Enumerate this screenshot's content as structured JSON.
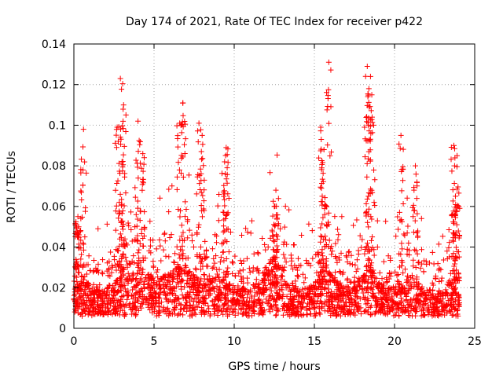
{
  "chart_data": {
    "type": "scatter",
    "title": "Day 174 of 2021, Rate Of TEC Index for receiver p422",
    "xlabel": "GPS time / hours",
    "ylabel": "ROTI / TECUs",
    "xlim": [
      0,
      25
    ],
    "ylim": [
      0,
      0.14
    ],
    "xticks": [
      "0",
      "5",
      "10",
      "15",
      "20",
      "25"
    ],
    "yticks": [
      "0",
      "0.02",
      "0.04",
      "0.06",
      "0.08",
      "0.1",
      "0.12",
      "0.14"
    ],
    "grid": true,
    "marker": "+",
    "color": "#ff0000",
    "series": [
      {
        "name": "ROTI",
        "x": [
          0.0,
          0.5,
          1.0,
          1.5,
          2.0,
          2.5,
          3.0,
          3.5,
          4.0,
          4.5,
          5.0,
          5.5,
          6.0,
          6.5,
          7.0,
          7.5,
          8.0,
          8.5,
          9.0,
          9.5,
          10.0,
          10.5,
          11.0,
          11.5,
          12.0,
          12.5,
          13.0,
          13.5,
          14.0,
          14.5,
          15.0,
          15.5,
          16.0,
          16.5,
          17.0,
          17.5,
          18.0,
          18.5,
          19.0,
          19.5,
          20.0,
          20.5,
          21.0,
          21.5,
          22.0,
          22.5,
          23.0,
          23.5,
          24.0,
          0.25,
          0.6,
          2.7,
          2.9,
          3.1,
          4.0,
          4.3,
          6.6,
          6.8,
          7.8,
          8.0,
          9.5,
          12.6,
          15.4,
          15.9,
          18.3,
          18.5,
          18.6,
          20.4,
          23.7,
          23.9,
          0.3,
          3.0,
          9.4,
          12.5,
          15.6,
          18.4,
          21.3,
          23.8
        ],
        "y": [
          0.014,
          0.022,
          0.018,
          0.015,
          0.016,
          0.02,
          0.028,
          0.032,
          0.03,
          0.025,
          0.022,
          0.024,
          0.026,
          0.028,
          0.03,
          0.024,
          0.02,
          0.022,
          0.025,
          0.02,
          0.018,
          0.016,
          0.018,
          0.02,
          0.03,
          0.035,
          0.03,
          0.018,
          0.016,
          0.016,
          0.02,
          0.028,
          0.026,
          0.02,
          0.018,
          0.02,
          0.025,
          0.03,
          0.022,
          0.016,
          0.018,
          0.02,
          0.025,
          0.022,
          0.016,
          0.015,
          0.016,
          0.022,
          0.012,
          0.055,
          0.098,
          0.099,
          0.123,
          0.11,
          0.102,
          0.086,
          0.101,
          0.111,
          0.101,
          0.095,
          0.089,
          0.068,
          0.099,
          0.131,
          0.129,
          0.124,
          0.104,
          0.095,
          0.09,
          0.085,
          0.05,
          0.082,
          0.082,
          0.06,
          0.088,
          0.118,
          0.08,
          0.065
        ]
      }
    ]
  }
}
